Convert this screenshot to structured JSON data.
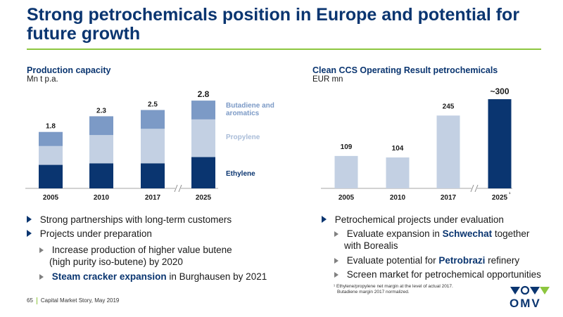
{
  "slide": {
    "title": "Strong petrochemicals position in Europe and potential for future growth",
    "page_number": "65",
    "footer_text": "Capital Market Story, May 2019",
    "logo_text": "OMV"
  },
  "left": {
    "title": "Production capacity",
    "unit": "Mn t p.a.",
    "bullets": [
      {
        "text": "Strong partnerships with long-term customers"
      },
      {
        "text": "Projects under preparation"
      }
    ],
    "sub_bullets": [
      {
        "line1": "Increase production of higher value butene",
        "line2": "(high purity iso-butene) by 2020"
      },
      {
        "highlight": "Steam cracker expansion",
        "rest": " in Burghausen by 2021"
      }
    ]
  },
  "right": {
    "title": "Clean CCS Operating Result petrochemicals",
    "unit": "EUR mn",
    "bullets": [
      {
        "text": "Petrochemical projects under evaluation"
      }
    ],
    "sub_bullets": [
      {
        "pre": "Evaluate expansion in ",
        "highlight": "Schwechat",
        "post": " together",
        "line2": "with Borealis"
      },
      {
        "pre": "Evaluate potential for ",
        "highlight": "Petrobrazi",
        "post": " refinery"
      },
      {
        "pre": "Screen market for petrochemical opportunities"
      }
    ],
    "footnote_marker": "¹",
    "footnote_line1": "Ethylene/propylene net margin at the level of actual 2017.",
    "footnote_line2": "Butadiene margin 2017 normalized."
  },
  "colors": {
    "dark_blue": "#0a3570",
    "mid_blue": "#7c9ac6",
    "light_blue": "#c3d0e3",
    "green": "#8dc63f"
  },
  "chart_data": [
    {
      "type": "bar",
      "stacked": true,
      "title": "Production capacity",
      "ylabel": "Mn t p.a.",
      "categories": [
        "2005",
        "2010",
        "2017",
        "2025"
      ],
      "axis_break_between": [
        "2017",
        "2025"
      ],
      "totals": [
        1.8,
        2.3,
        2.5,
        2.8
      ],
      "series": [
        {
          "name": "Ethylene",
          "color": "#0a3570",
          "values": [
            0.75,
            0.8,
            0.8,
            1.0
          ]
        },
        {
          "name": "Propylene",
          "color": "#c3d0e3",
          "values": [
            0.6,
            0.9,
            1.1,
            1.2
          ]
        },
        {
          "name": "Butadiene and aromatics",
          "color": "#7c9ac6",
          "values": [
            0.45,
            0.6,
            0.6,
            0.6
          ]
        }
      ],
      "legend": [
        "Butadiene and",
        "aromatics",
        "Propylene",
        "Ethylene"
      ],
      "legend_placement": "right"
    },
    {
      "type": "bar",
      "title": "Clean CCS Operating Result petrochemicals",
      "ylabel": "EUR mn",
      "categories": [
        "2005",
        "2010",
        "2017",
        "2025"
      ],
      "category_suffix": [
        "",
        "",
        "",
        "¹"
      ],
      "axis_break_between": [
        "2017",
        "2025"
      ],
      "values": [
        109,
        104,
        245,
        300
      ],
      "labels": [
        "109",
        "104",
        "245",
        "~300"
      ],
      "colors": [
        "#c3d0e3",
        "#c3d0e3",
        "#c3d0e3",
        "#0a3570"
      ]
    }
  ]
}
